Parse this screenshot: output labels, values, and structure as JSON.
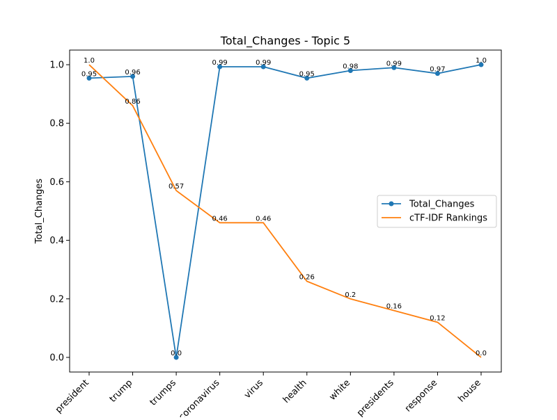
{
  "chart_data": {
    "type": "line",
    "title": "Total_Changes - Topic 5",
    "xlabel": "",
    "ylabel": "Total_Changes",
    "categories": [
      "president",
      "trump",
      "trumps",
      "coronavirus",
      "virus",
      "health",
      "white",
      "presidents",
      "response",
      "house"
    ],
    "ylim": [
      -0.05,
      1.05
    ],
    "yticks": [
      0.0,
      0.2,
      0.4,
      0.6,
      0.8,
      1.0
    ],
    "ytick_labels": [
      "0.0",
      "0.2",
      "0.4",
      "0.6",
      "0.8",
      "1.0"
    ],
    "grid": false,
    "legend_position": "center-right",
    "series": [
      {
        "name": "Total_Changes",
        "color": "#1f77b4",
        "marker": "circle",
        "values": [
          0.954,
          0.96,
          0.0,
          0.993,
          0.993,
          0.954,
          0.98,
          0.99,
          0.97,
          1.0
        ],
        "labels": [
          "0.95",
          "0.96",
          "0.0",
          "0.99",
          "0.99",
          "0.95",
          "0.98",
          "0.99",
          "0.97",
          "1.0"
        ]
      },
      {
        "name": "cTF-IDF Rankings",
        "color": "#ff7f0e",
        "marker": "none",
        "values": [
          1.0,
          0.86,
          0.57,
          0.46,
          0.46,
          0.26,
          0.2,
          0.16,
          0.12,
          0.0
        ],
        "labels": [
          "1.0",
          "0.86",
          "0.57",
          "0.46",
          "0.46",
          "0.26",
          "0.2",
          "0.16",
          "0.12",
          "0.0"
        ]
      }
    ]
  }
}
